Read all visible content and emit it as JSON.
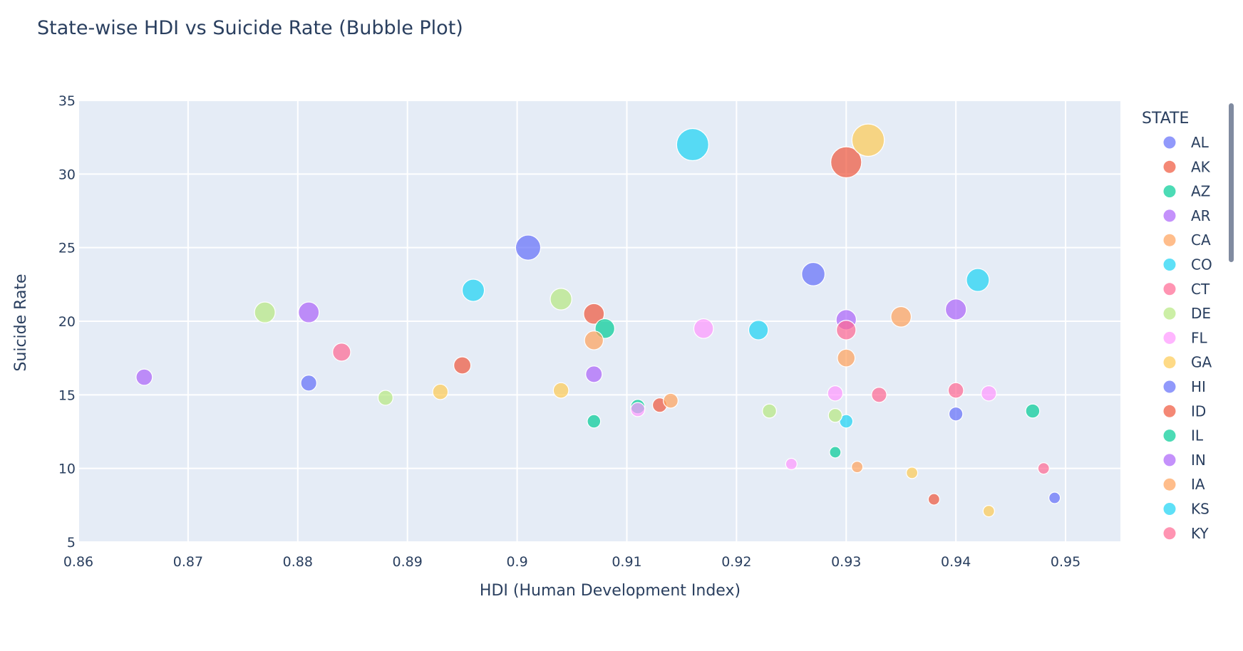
{
  "chart_data": {
    "type": "scatter",
    "subtype": "bubble",
    "title": "State-wise HDI vs Suicide Rate (Bubble Plot)",
    "xlabel": "HDI (Human Development Index)",
    "ylabel": "Suicide Rate",
    "xlim": [
      0.86,
      0.955
    ],
    "ylim": [
      5,
      35
    ],
    "x_ticks": [
      0.86,
      0.87,
      0.88,
      0.89,
      0.9,
      0.91,
      0.92,
      0.93,
      0.94,
      0.95
    ],
    "x_tick_labels": [
      "0.86",
      "0.87",
      "0.88",
      "0.89",
      "0.9",
      "0.91",
      "0.92",
      "0.93",
      "0.94",
      "0.95"
    ],
    "y_ticks": [
      5,
      10,
      15,
      20,
      25,
      30,
      35
    ],
    "y_tick_labels": [
      "5",
      "10",
      "15",
      "20",
      "25",
      "30",
      "35"
    ],
    "grid": true,
    "background": "#e5ecf6",
    "legend": {
      "title": "STATE",
      "position": "right",
      "scrollable": true
    },
    "series": [
      {
        "name": "AL",
        "color": "#636efa",
        "points": [
          {
            "x": 0.901,
            "y": 25.0
          },
          {
            "x": 0.927,
            "y": 23.2
          },
          {
            "x": 0.881,
            "y": 15.8
          },
          {
            "x": 0.94,
            "y": 13.7
          },
          {
            "x": 0.949,
            "y": 8.0
          }
        ]
      },
      {
        "name": "AK",
        "color": "#ef553b",
        "points": [
          {
            "x": 0.93,
            "y": 30.8
          },
          {
            "x": 0.907,
            "y": 20.5
          },
          {
            "x": 0.895,
            "y": 17.0
          },
          {
            "x": 0.913,
            "y": 14.3
          },
          {
            "x": 0.938,
            "y": 7.9
          }
        ]
      },
      {
        "name": "AZ",
        "color": "#00cc96",
        "points": [
          {
            "x": 0.908,
            "y": 19.5
          },
          {
            "x": 0.911,
            "y": 14.2
          },
          {
            "x": 0.907,
            "y": 13.2
          },
          {
            "x": 0.947,
            "y": 13.9
          },
          {
            "x": 0.929,
            "y": 11.1
          }
        ]
      },
      {
        "name": "AR",
        "color": "#ab63fa",
        "points": [
          {
            "x": 0.881,
            "y": 20.6
          },
          {
            "x": 0.93,
            "y": 20.1
          },
          {
            "x": 0.94,
            "y": 20.8
          },
          {
            "x": 0.866,
            "y": 16.2
          },
          {
            "x": 0.907,
            "y": 16.4
          }
        ]
      },
      {
        "name": "CA",
        "color": "#ffa15a",
        "points": [
          {
            "x": 0.935,
            "y": 20.3
          },
          {
            "x": 0.907,
            "y": 18.7
          },
          {
            "x": 0.93,
            "y": 17.5
          },
          {
            "x": 0.914,
            "y": 14.6
          },
          {
            "x": 0.931,
            "y": 10.1
          }
        ]
      },
      {
        "name": "CO",
        "color": "#19d3f3",
        "points": [
          {
            "x": 0.916,
            "y": 32.0
          },
          {
            "x": 0.942,
            "y": 22.8
          },
          {
            "x": 0.896,
            "y": 22.1
          },
          {
            "x": 0.922,
            "y": 19.4
          },
          {
            "x": 0.93,
            "y": 13.2
          }
        ]
      },
      {
        "name": "CT",
        "color": "#ff6692",
        "points": [
          {
            "x": 0.884,
            "y": 17.9
          },
          {
            "x": 0.93,
            "y": 19.4
          },
          {
            "x": 0.933,
            "y": 15.0
          },
          {
            "x": 0.94,
            "y": 15.3
          },
          {
            "x": 0.948,
            "y": 10.0
          }
        ]
      },
      {
        "name": "DE",
        "color": "#b6e880",
        "points": [
          {
            "x": 0.877,
            "y": 20.6
          },
          {
            "x": 0.904,
            "y": 21.5
          },
          {
            "x": 0.888,
            "y": 14.8
          },
          {
            "x": 0.923,
            "y": 13.9
          },
          {
            "x": 0.929,
            "y": 13.6
          }
        ]
      },
      {
        "name": "FL",
        "color": "#ff97ff",
        "points": [
          {
            "x": 0.917,
            "y": 19.5
          },
          {
            "x": 0.929,
            "y": 15.1
          },
          {
            "x": 0.943,
            "y": 15.1
          },
          {
            "x": 0.911,
            "y": 14.0
          },
          {
            "x": 0.925,
            "y": 10.3
          }
        ]
      },
      {
        "name": "GA",
        "color": "#fecb52",
        "points": [
          {
            "x": 0.932,
            "y": 32.3
          },
          {
            "x": 0.893,
            "y": 15.2
          },
          {
            "x": 0.904,
            "y": 15.3
          },
          {
            "x": 0.936,
            "y": 9.7
          },
          {
            "x": 0.943,
            "y": 7.1
          }
        ]
      },
      {
        "name": "HI",
        "color": "#636efa",
        "points": []
      },
      {
        "name": "ID",
        "color": "#ef553b",
        "points": []
      },
      {
        "name": "IL",
        "color": "#00cc96",
        "points": []
      },
      {
        "name": "IN",
        "color": "#ab63fa",
        "points": []
      },
      {
        "name": "IA",
        "color": "#ffa15a",
        "points": []
      },
      {
        "name": "KS",
        "color": "#19d3f3",
        "points": []
      },
      {
        "name": "KY",
        "color": "#ff6692",
        "points": []
      }
    ]
  }
}
